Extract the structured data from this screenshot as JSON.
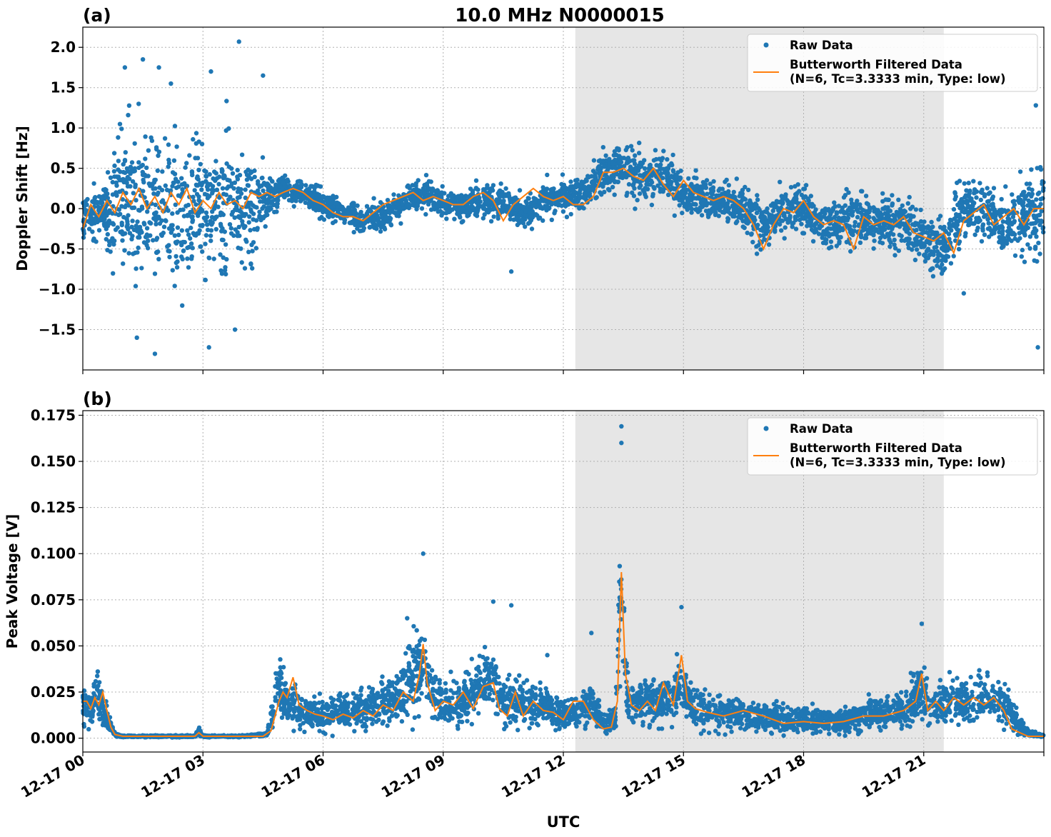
{
  "figure": {
    "title": "10.0 MHz N0000015",
    "xlabel": "UTC",
    "x_ticks": [
      "12-17 00",
      "12-17 03",
      "12-17 06",
      "12-17 09",
      "12-17 12",
      "12-17 15",
      "12-17 18",
      "12-17 21"
    ]
  },
  "colors": {
    "raw": "#1f77b4",
    "filtered": "#ff7f0e",
    "shade": "#e6e6e6",
    "grid": "#b0b0b0"
  },
  "chart_data": [
    {
      "panel": "(a)",
      "type": "scatter",
      "ylabel": "Doppler Shift [Hz]",
      "x_unit": "hours UTC on 12-17",
      "xlim": [
        0,
        24
      ],
      "ylim": [
        -2.0,
        2.25
      ],
      "y_ticks": [
        2.0,
        1.5,
        1.0,
        0.5,
        0.0,
        -0.5,
        -1.0,
        -1.5
      ],
      "y_tick_labels": [
        "2.0",
        "1.5",
        "1.0",
        "0.5",
        "0.0",
        "−0.5",
        "−1.0",
        "−1.5"
      ],
      "shaded_interval": [
        12.3,
        21.5
      ],
      "legend": {
        "position": "upper-right",
        "entries": [
          "Raw Data",
          "Butterworth Filtered Data",
          "(N=6, Tc=3.3333 min, Type: low)"
        ]
      },
      "series": [
        {
          "name": "Raw Data",
          "style": "points",
          "x": [
            0,
            0.5,
            0.8,
            1.2,
            1.6,
            2.0,
            2.4,
            3.0,
            3.6,
            4.2,
            4.6,
            5.0,
            5.5,
            6.0,
            6.5,
            7.0,
            7.5,
            8.0,
            8.5,
            9.0,
            9.5,
            10.0,
            10.5,
            11.0,
            11.5,
            12.0,
            12.5,
            13.0,
            13.5,
            14.0,
            14.5,
            15.0,
            15.5,
            16.0,
            16.5,
            17.0,
            17.5,
            18.0,
            18.5,
            19.0,
            19.5,
            20.0,
            20.5,
            21.0,
            21.5,
            22.0,
            22.5,
            23.0,
            23.5,
            24.0
          ],
          "y": [
            -0.15,
            0.0,
            0.1,
            0.1,
            0.05,
            0.0,
            -0.05,
            0.0,
            0.1,
            0.05,
            0.15,
            0.25,
            0.2,
            0.05,
            -0.05,
            -0.15,
            -0.1,
            0.05,
            0.2,
            0.1,
            0.05,
            0.1,
            0.1,
            -0.05,
            0.1,
            0.15,
            0.2,
            0.45,
            0.5,
            0.4,
            0.45,
            0.2,
            0.1,
            0.1,
            0.0,
            -0.2,
            0.0,
            0.0,
            -0.2,
            -0.15,
            -0.15,
            -0.2,
            -0.2,
            -0.35,
            -0.5,
            0.0,
            0.0,
            -0.2,
            -0.1,
            0.0
          ],
          "spread": [
            0.3,
            0.25,
            0.9,
            0.85,
            0.85,
            0.8,
            0.8,
            0.8,
            0.8,
            0.75,
            0.35,
            0.18,
            0.17,
            0.17,
            0.15,
            0.17,
            0.17,
            0.17,
            0.2,
            0.18,
            0.17,
            0.2,
            0.2,
            0.2,
            0.2,
            0.2,
            0.2,
            0.25,
            0.3,
            0.3,
            0.3,
            0.3,
            0.25,
            0.25,
            0.25,
            0.3,
            0.3,
            0.3,
            0.3,
            0.35,
            0.3,
            0.3,
            0.3,
            0.3,
            0.35,
            0.35,
            0.35,
            0.35,
            0.5,
            0.6
          ],
          "outliers": [
            [
              1.05,
              1.75
            ],
            [
              1.5,
              1.85
            ],
            [
              1.9,
              1.75
            ],
            [
              2.2,
              1.55
            ],
            [
              3.2,
              1.7
            ],
            [
              3.9,
              2.07
            ],
            [
              4.5,
              1.65
            ],
            [
              1.8,
              -1.8
            ],
            [
              3.15,
              -1.72
            ],
            [
              3.8,
              -1.5
            ],
            [
              1.35,
              -1.6
            ],
            [
              10.7,
              -0.78
            ],
            [
              23.8,
              1.28
            ],
            [
              23.85,
              -1.72
            ],
            [
              22.0,
              -1.05
            ]
          ]
        },
        {
          "name": "Butterworth Filtered Data",
          "style": "line",
          "x": [
            0,
            0.2,
            0.4,
            0.6,
            0.8,
            1.0,
            1.2,
            1.4,
            1.6,
            1.8,
            2.0,
            2.2,
            2.4,
            2.6,
            2.8,
            3.0,
            3.2,
            3.4,
            3.6,
            3.8,
            4.0,
            4.2,
            4.4,
            4.6,
            4.8,
            5.0,
            5.25,
            5.5,
            5.75,
            6.0,
            6.25,
            6.5,
            6.75,
            7.0,
            7.25,
            7.5,
            7.75,
            8.0,
            8.25,
            8.5,
            8.75,
            9.0,
            9.25,
            9.5,
            9.75,
            10.0,
            10.25,
            10.5,
            10.75,
            11.0,
            11.25,
            11.5,
            11.75,
            12.0,
            12.25,
            12.5,
            12.75,
            13.0,
            13.25,
            13.5,
            13.75,
            14.0,
            14.25,
            14.5,
            14.75,
            15.0,
            15.25,
            15.5,
            15.75,
            16.0,
            16.25,
            16.5,
            16.75,
            17.0,
            17.25,
            17.5,
            17.75,
            18.0,
            18.25,
            18.5,
            18.75,
            19.0,
            19.25,
            19.5,
            19.75,
            20.0,
            20.25,
            20.5,
            20.75,
            21.0,
            21.25,
            21.5,
            21.75,
            22.0,
            22.25,
            22.5,
            22.75,
            23.0,
            23.25,
            23.5,
            23.75,
            24.0
          ],
          "y": [
            -0.25,
            0.05,
            -0.1,
            0.1,
            -0.05,
            0.2,
            0.05,
            0.25,
            0.0,
            0.15,
            -0.05,
            0.2,
            0.05,
            0.25,
            -0.05,
            0.1,
            0.0,
            0.2,
            0.05,
            0.1,
            0.0,
            0.2,
            0.15,
            0.2,
            0.15,
            0.2,
            0.25,
            0.2,
            0.1,
            0.05,
            -0.05,
            -0.1,
            -0.1,
            -0.15,
            -0.05,
            0.05,
            0.1,
            0.15,
            0.2,
            0.1,
            0.15,
            0.1,
            0.05,
            0.05,
            0.15,
            0.2,
            0.1,
            -0.15,
            0.05,
            0.15,
            0.25,
            0.15,
            0.1,
            0.15,
            0.05,
            0.05,
            0.15,
            0.45,
            0.45,
            0.5,
            0.4,
            0.35,
            0.5,
            0.3,
            0.15,
            0.35,
            0.2,
            0.15,
            0.1,
            0.15,
            0.1,
            0.0,
            -0.2,
            -0.5,
            -0.2,
            0.0,
            -0.05,
            0.1,
            -0.1,
            -0.2,
            -0.15,
            -0.2,
            -0.5,
            -0.1,
            -0.2,
            -0.15,
            -0.2,
            -0.1,
            -0.3,
            -0.35,
            -0.4,
            -0.3,
            -0.55,
            -0.15,
            -0.05,
            0.05,
            -0.2,
            -0.1,
            0.0,
            -0.2,
            0.0,
            0.0
          ]
        }
      ]
    },
    {
      "panel": "(b)",
      "type": "scatter",
      "ylabel": "Peak Voltage [V]",
      "x_unit": "hours UTC on 12-17",
      "xlim": [
        0,
        24
      ],
      "ylim": [
        -0.0075,
        0.1775
      ],
      "y_ticks": [
        0.175,
        0.15,
        0.125,
        0.1,
        0.075,
        0.05,
        0.025,
        0.0
      ],
      "y_tick_labels": [
        "0.175",
        "0.150",
        "0.125",
        "0.100",
        "0.075",
        "0.050",
        "0.025",
        "0.000"
      ],
      "shaded_interval": [
        12.3,
        21.5
      ],
      "legend": {
        "position": "upper-right",
        "entries": [
          "Raw Data",
          "Butterworth Filtered Data",
          "(N=6, Tc=3.3333 min, Type: low)"
        ]
      },
      "series": [
        {
          "name": "Raw Data",
          "style": "points",
          "x": [
            0,
            0.15,
            0.35,
            0.55,
            0.8,
            1.0,
            2.0,
            2.8,
            2.9,
            3.0,
            4.0,
            4.6,
            4.9,
            5.1,
            5.5,
            6.0,
            6.5,
            7.0,
            7.5,
            8.0,
            8.3,
            8.5,
            8.7,
            9.0,
            9.5,
            10.0,
            10.25,
            10.5,
            11.0,
            11.5,
            12.0,
            12.3,
            12.7,
            13.0,
            13.3,
            13.45,
            13.6,
            13.8,
            14.0,
            14.5,
            14.95,
            15.2,
            15.5,
            16.0,
            16.5,
            17.0,
            17.5,
            18.0,
            18.5,
            19.0,
            19.5,
            20.0,
            20.5,
            20.9,
            21.2,
            21.5,
            22.0,
            22.5,
            22.9,
            23.3,
            23.6,
            24.0
          ],
          "y": [
            0.02,
            0.015,
            0.025,
            0.012,
            0.002,
            0.001,
            0.001,
            0.001,
            0.004,
            0.001,
            0.001,
            0.002,
            0.03,
            0.02,
            0.015,
            0.012,
            0.014,
            0.015,
            0.02,
            0.025,
            0.035,
            0.045,
            0.025,
            0.018,
            0.02,
            0.03,
            0.035,
            0.02,
            0.02,
            0.018,
            0.012,
            0.012,
            0.02,
            0.008,
            0.01,
            0.085,
            0.02,
            0.018,
            0.02,
            0.02,
            0.03,
            0.018,
            0.015,
            0.015,
            0.012,
            0.012,
            0.01,
            0.01,
            0.01,
            0.01,
            0.012,
            0.015,
            0.015,
            0.025,
            0.018,
            0.02,
            0.02,
            0.025,
            0.02,
            0.01,
            0.003,
            0.001
          ],
          "spread": [
            0.012,
            0.01,
            0.012,
            0.008,
            0.001,
            0.0005,
            0.0005,
            0.0005,
            0.002,
            0.0005,
            0.0005,
            0.001,
            0.018,
            0.012,
            0.01,
            0.009,
            0.009,
            0.01,
            0.012,
            0.015,
            0.02,
            0.022,
            0.014,
            0.012,
            0.012,
            0.015,
            0.015,
            0.012,
            0.012,
            0.011,
            0.009,
            0.009,
            0.012,
            0.006,
            0.007,
            0.04,
            0.012,
            0.011,
            0.012,
            0.012,
            0.015,
            0.011,
            0.01,
            0.009,
            0.009,
            0.008,
            0.007,
            0.007,
            0.007,
            0.007,
            0.008,
            0.009,
            0.01,
            0.015,
            0.012,
            0.012,
            0.012,
            0.013,
            0.012,
            0.007,
            0.002,
            0.0005
          ],
          "outliers": [
            [
              8.5,
              0.1
            ],
            [
              10.25,
              0.074
            ],
            [
              10.7,
              0.072
            ],
            [
              13.45,
              0.169
            ],
            [
              13.45,
              0.16
            ],
            [
              14.95,
              0.071
            ],
            [
              8.1,
              0.065
            ],
            [
              20.95,
              0.062
            ],
            [
              12.7,
              0.057
            ],
            [
              11.6,
              0.045
            ]
          ]
        },
        {
          "name": "Butterworth Filtered Data",
          "style": "line",
          "x": [
            0,
            0.1,
            0.2,
            0.3,
            0.4,
            0.5,
            0.6,
            0.7,
            0.8,
            1.0,
            1.5,
            2.0,
            2.5,
            2.8,
            2.9,
            3.0,
            3.5,
            4.0,
            4.5,
            4.7,
            4.9,
            5.0,
            5.1,
            5.25,
            5.4,
            5.6,
            5.8,
            6.0,
            6.25,
            6.5,
            6.75,
            7.0,
            7.25,
            7.5,
            7.75,
            8.0,
            8.25,
            8.4,
            8.5,
            8.6,
            8.8,
            9.0,
            9.25,
            9.5,
            9.75,
            10.0,
            10.25,
            10.4,
            10.6,
            10.8,
            11.0,
            11.25,
            11.5,
            11.75,
            12.0,
            12.25,
            12.5,
            12.75,
            13.0,
            13.2,
            13.35,
            13.45,
            13.55,
            13.7,
            13.9,
            14.1,
            14.3,
            14.5,
            14.75,
            14.95,
            15.1,
            15.3,
            15.6,
            16.0,
            16.5,
            17.0,
            17.5,
            18.0,
            18.5,
            19.0,
            19.5,
            20.0,
            20.5,
            20.8,
            20.95,
            21.1,
            21.3,
            21.5,
            21.75,
            22.0,
            22.25,
            22.5,
            22.75,
            23.0,
            23.2,
            23.4,
            23.6,
            24.0
          ],
          "y": [
            0.02,
            0.02,
            0.016,
            0.022,
            0.018,
            0.025,
            0.015,
            0.006,
            0.002,
            0.001,
            0.001,
            0.001,
            0.001,
            0.001,
            0.003,
            0.001,
            0.001,
            0.001,
            0.001,
            0.004,
            0.02,
            0.025,
            0.022,
            0.033,
            0.018,
            0.015,
            0.013,
            0.012,
            0.01,
            0.013,
            0.011,
            0.015,
            0.012,
            0.018,
            0.015,
            0.025,
            0.02,
            0.034,
            0.051,
            0.03,
            0.015,
            0.02,
            0.018,
            0.025,
            0.016,
            0.028,
            0.03,
            0.016,
            0.012,
            0.025,
            0.012,
            0.02,
            0.015,
            0.014,
            0.01,
            0.02,
            0.02,
            0.01,
            0.005,
            0.006,
            0.02,
            0.09,
            0.035,
            0.018,
            0.015,
            0.02,
            0.015,
            0.03,
            0.018,
            0.045,
            0.02,
            0.016,
            0.014,
            0.012,
            0.015,
            0.012,
            0.008,
            0.009,
            0.008,
            0.009,
            0.012,
            0.012,
            0.015,
            0.02,
            0.035,
            0.015,
            0.02,
            0.015,
            0.022,
            0.018,
            0.022,
            0.018,
            0.022,
            0.015,
            0.005,
            0.003,
            0.001,
            0.001
          ]
        }
      ]
    }
  ]
}
